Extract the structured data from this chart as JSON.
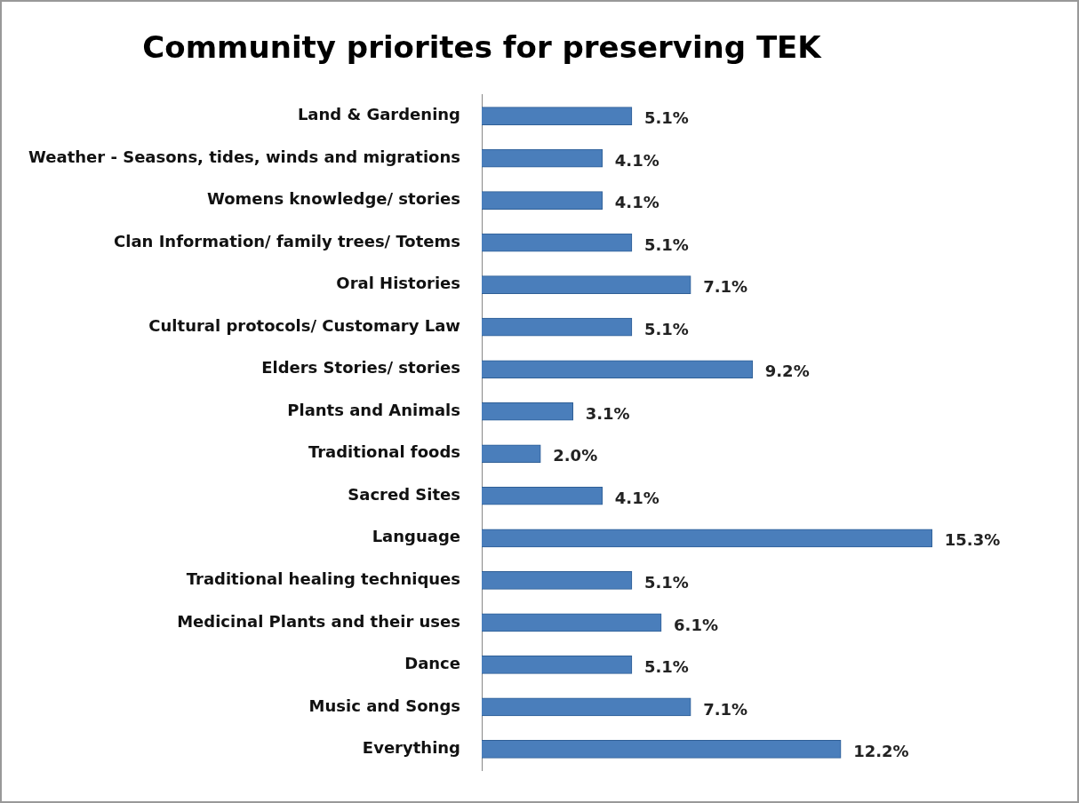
{
  "chart_data": {
    "type": "bar",
    "orientation": "horizontal",
    "title": "Community priorites for preserving TEK",
    "categories": [
      "Land & Gardening",
      "Weather - Seasons, tides, winds and migrations",
      "Womens knowledge/ stories",
      "Clan Information/ family trees/ Totems",
      "Oral Histories",
      "Cultural protocols/ Customary Law",
      "Elders Stories/ stories",
      "Plants and Animals",
      "Traditional foods",
      "Sacred Sites",
      "Language",
      "Traditional healing techniques",
      "Medicinal Plants and their uses",
      "Dance",
      "Music and Songs",
      "Everything"
    ],
    "values": [
      5.1,
      4.1,
      4.1,
      5.1,
      7.1,
      5.1,
      9.2,
      3.1,
      2.0,
      4.1,
      15.3,
      5.1,
      6.1,
      5.1,
      7.1,
      12.2
    ],
    "value_labels": [
      "5.1%",
      "4.1%",
      "4.1%",
      "5.1%",
      "7.1%",
      "5.1%",
      "9.2%",
      "3.1%",
      "2.0%",
      "4.1%",
      "15.3%",
      "5.1%",
      "6.1%",
      "5.1%",
      "7.1%",
      "12.2%"
    ],
    "color": "#4a7ebb",
    "tick_labels": "y"
  }
}
